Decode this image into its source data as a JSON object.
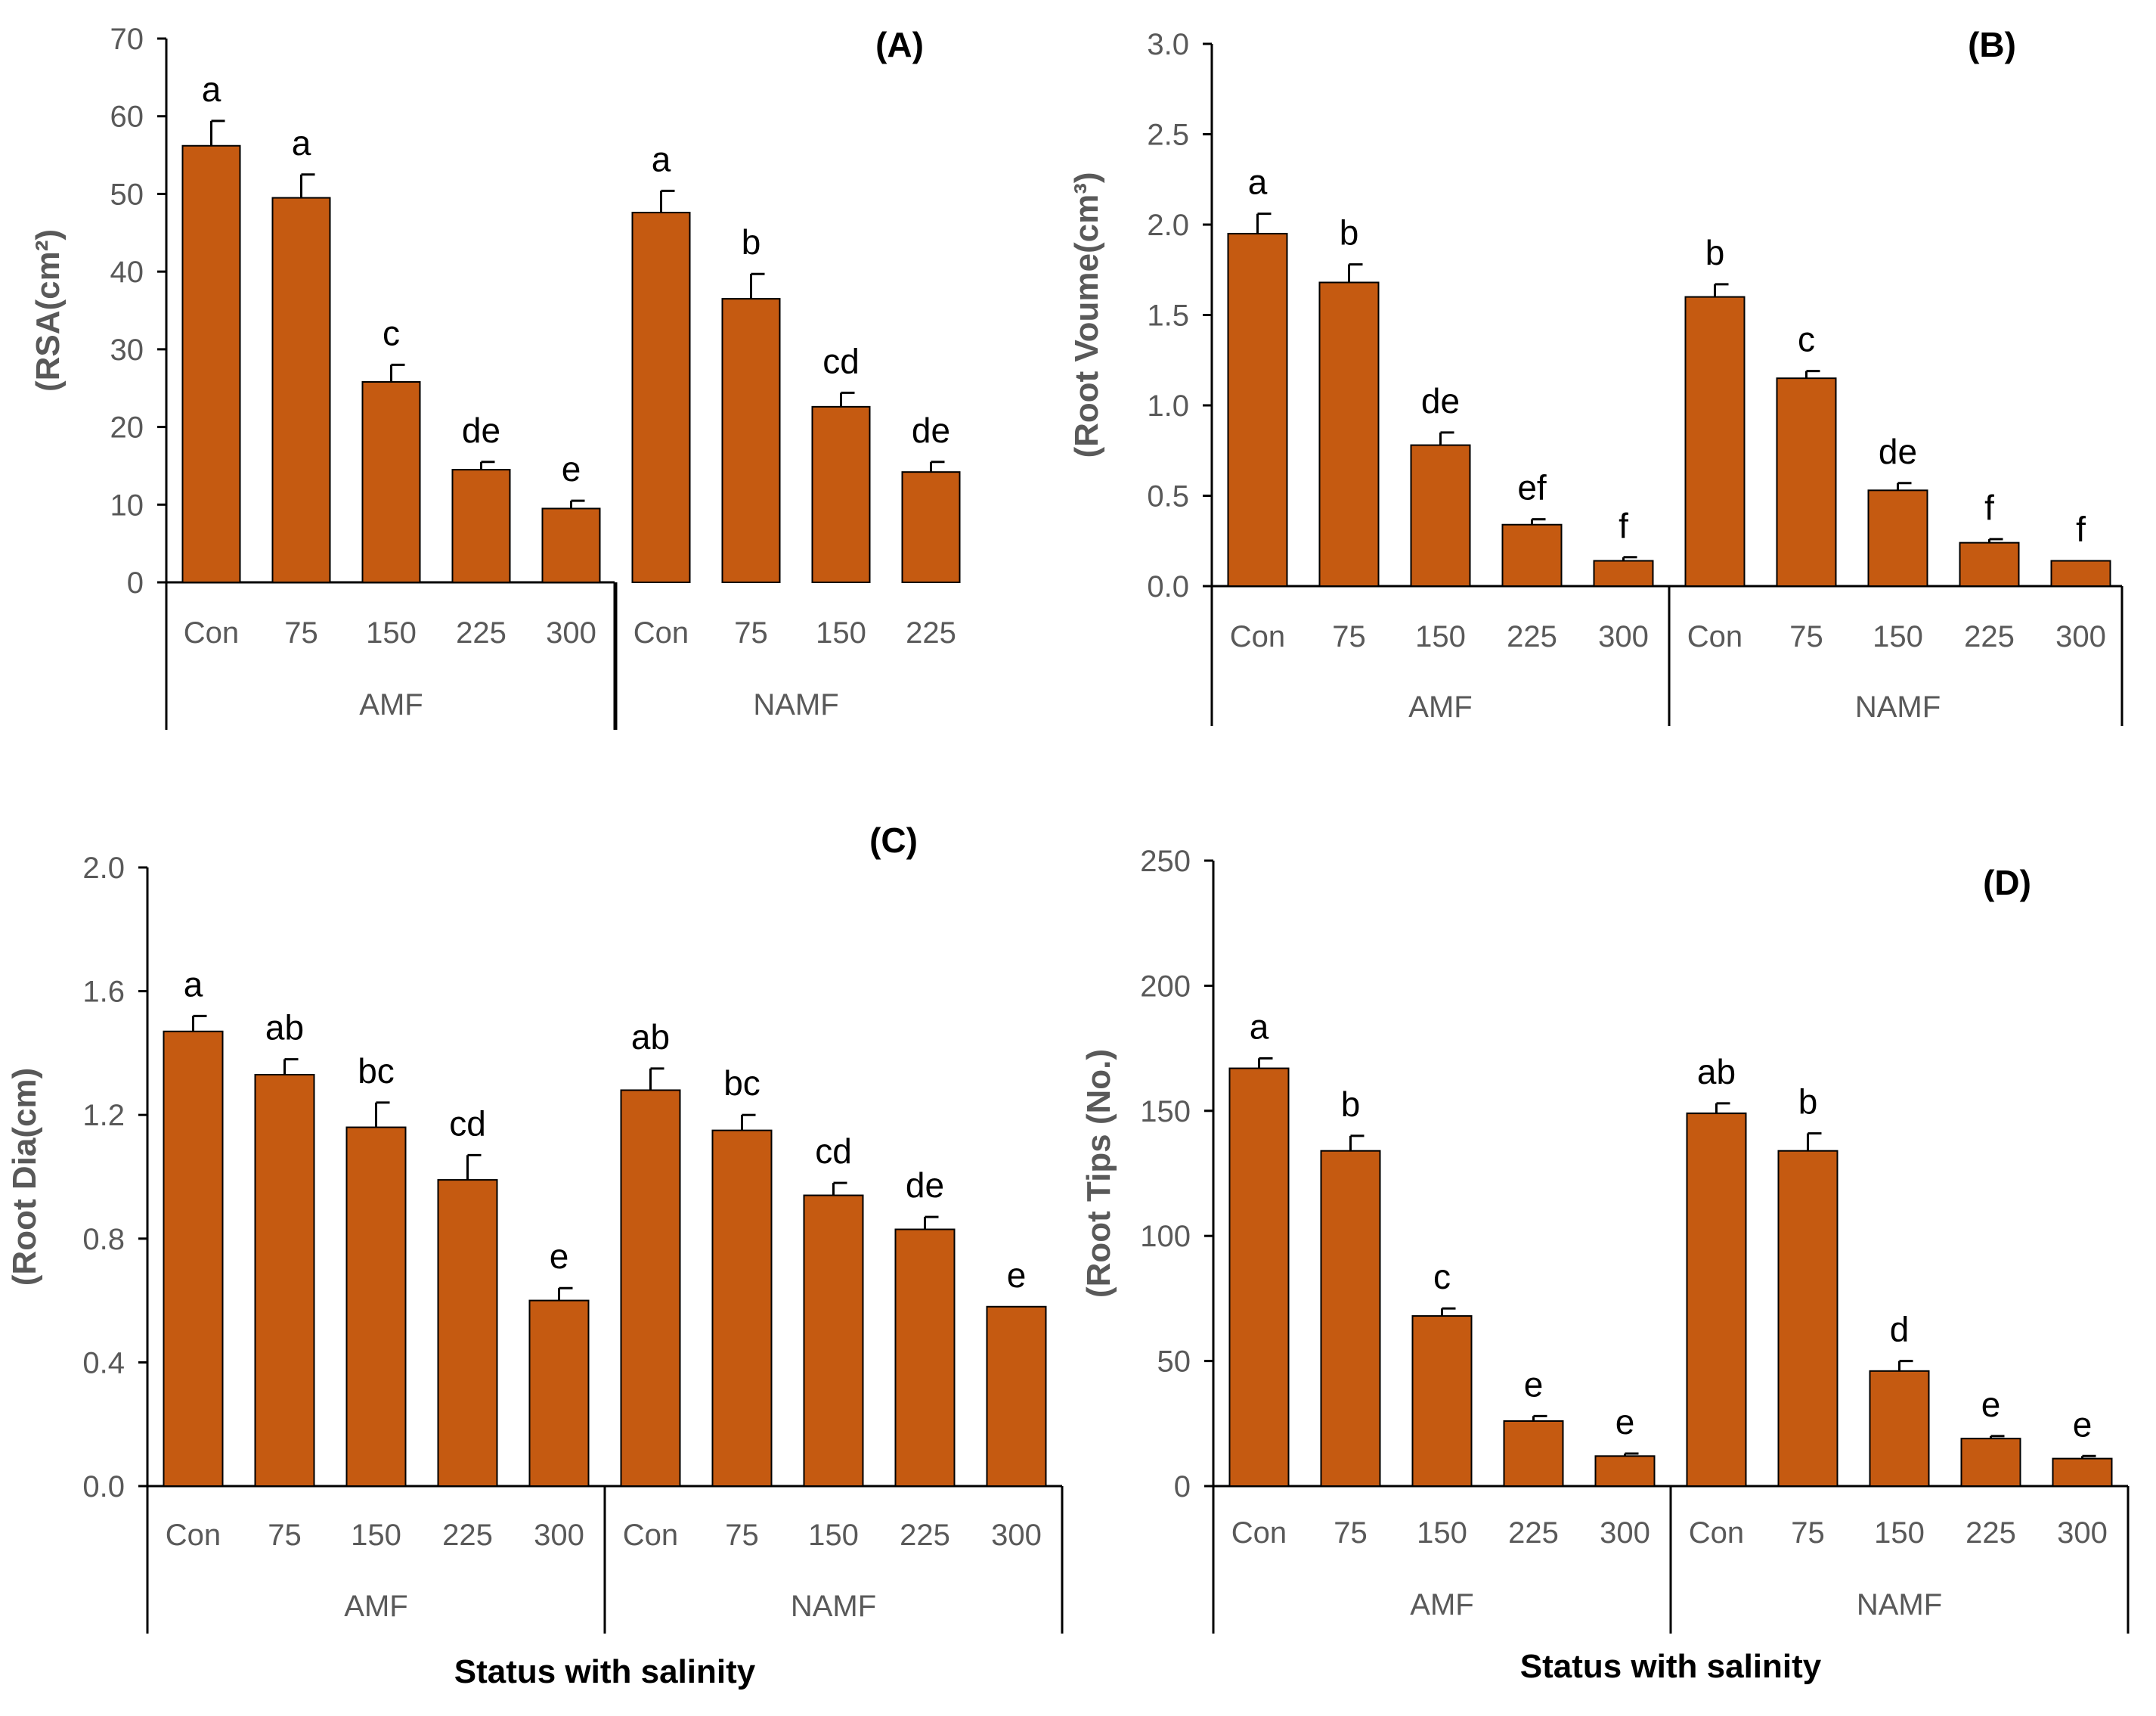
{
  "colors": {
    "bar": "#c55a11",
    "bar_edge": "#000000",
    "axis": "#000000",
    "text_muted": "#595959"
  },
  "chart_data": [
    {
      "type": "bar",
      "panel_label": "(A)",
      "ylabel": "(RSA(cm²)",
      "xlabel": "",
      "ylim": [
        0,
        70
      ],
      "yticks": [
        "0",
        "10",
        "20",
        "30",
        "40",
        "50",
        "60",
        "70"
      ],
      "groups": [
        {
          "name": "AMF",
          "categories": [
            "Con",
            "75",
            "150",
            "225",
            "300"
          ],
          "values": [
            56.2,
            49.5,
            25.8,
            14.5,
            9.5
          ],
          "errors": [
            3.2,
            3.0,
            2.2,
            1.0,
            1.0
          ],
          "letters": [
            "a",
            "a",
            "c",
            "de",
            "e"
          ]
        },
        {
          "name": "NAMF",
          "categories": [
            "Con",
            "75",
            "150",
            "225"
          ],
          "values": [
            47.6,
            36.5,
            22.6,
            14.2
          ],
          "errors": [
            2.8,
            3.2,
            1.8,
            1.3
          ],
          "letters": [
            "a",
            "b",
            "cd",
            "de"
          ]
        }
      ]
    },
    {
      "type": "bar",
      "panel_label": "(B)",
      "ylabel": "(Root Voume(cm³)",
      "xlabel": "",
      "ylim": [
        0,
        3.0
      ],
      "yticks": [
        "0.0",
        "0.5",
        "1.0",
        "1.5",
        "2.0",
        "2.5",
        "3.0"
      ],
      "groups": [
        {
          "name": "AMF",
          "categories": [
            "Con",
            "75",
            "150",
            "225",
            "300"
          ],
          "values": [
            1.95,
            1.68,
            0.78,
            0.34,
            0.14
          ],
          "errors": [
            0.11,
            0.1,
            0.07,
            0.03,
            0.02
          ],
          "letters": [
            "a",
            "b",
            "de",
            "ef",
            "f"
          ]
        },
        {
          "name": "NAMF",
          "categories": [
            "Con",
            "75",
            "150",
            "225",
            "300"
          ],
          "values": [
            1.6,
            1.15,
            0.53,
            0.24,
            0.14
          ],
          "errors": [
            0.07,
            0.04,
            0.04,
            0.02,
            0.0
          ],
          "letters": [
            "b",
            "c",
            "de",
            "f",
            "f"
          ]
        }
      ]
    },
    {
      "type": "bar",
      "panel_label": "(C)",
      "ylabel": "(Root Dia(cm)",
      "xlabel": "Status with salinity",
      "ylim": [
        0,
        2.0
      ],
      "yticks": [
        "0.0",
        "0.4",
        "0.8",
        "1.2",
        "1.6",
        "2.0"
      ],
      "groups": [
        {
          "name": "AMF",
          "categories": [
            "Con",
            "75",
            "150",
            "225",
            "300"
          ],
          "values": [
            1.47,
            1.33,
            1.16,
            0.99,
            0.6
          ],
          "errors": [
            0.05,
            0.05,
            0.08,
            0.08,
            0.04
          ],
          "letters": [
            "a",
            "ab",
            "bc",
            "cd",
            "e"
          ]
        },
        {
          "name": "NAMF",
          "categories": [
            "Con",
            "75",
            "150",
            "225",
            "300"
          ],
          "values": [
            1.28,
            1.15,
            0.94,
            0.83,
            0.58
          ],
          "errors": [
            0.07,
            0.05,
            0.04,
            0.04,
            0.0
          ],
          "letters": [
            "ab",
            "bc",
            "cd",
            "de",
            "e"
          ]
        }
      ]
    },
    {
      "type": "bar",
      "panel_label": "(D)",
      "ylabel": "(Root Tips (No.)",
      "xlabel": "Status with salinity",
      "ylim": [
        0,
        250
      ],
      "yticks": [
        "0",
        "50",
        "100",
        "150",
        "200",
        "250"
      ],
      "groups": [
        {
          "name": "AMF",
          "categories": [
            "Con",
            "75",
            "150",
            "225",
            "300"
          ],
          "values": [
            167,
            134,
            68,
            26,
            12
          ],
          "errors": [
            4,
            6,
            3,
            2,
            1
          ],
          "letters": [
            "a",
            "b",
            "c",
            "e",
            "e"
          ]
        },
        {
          "name": "NAMF",
          "categories": [
            "Con",
            "75",
            "150",
            "225",
            "300"
          ],
          "values": [
            149,
            134,
            46,
            19,
            11
          ],
          "errors": [
            4,
            7,
            4,
            1,
            1
          ],
          "letters": [
            "ab",
            "b",
            "d",
            "e",
            "e"
          ]
        }
      ]
    }
  ]
}
